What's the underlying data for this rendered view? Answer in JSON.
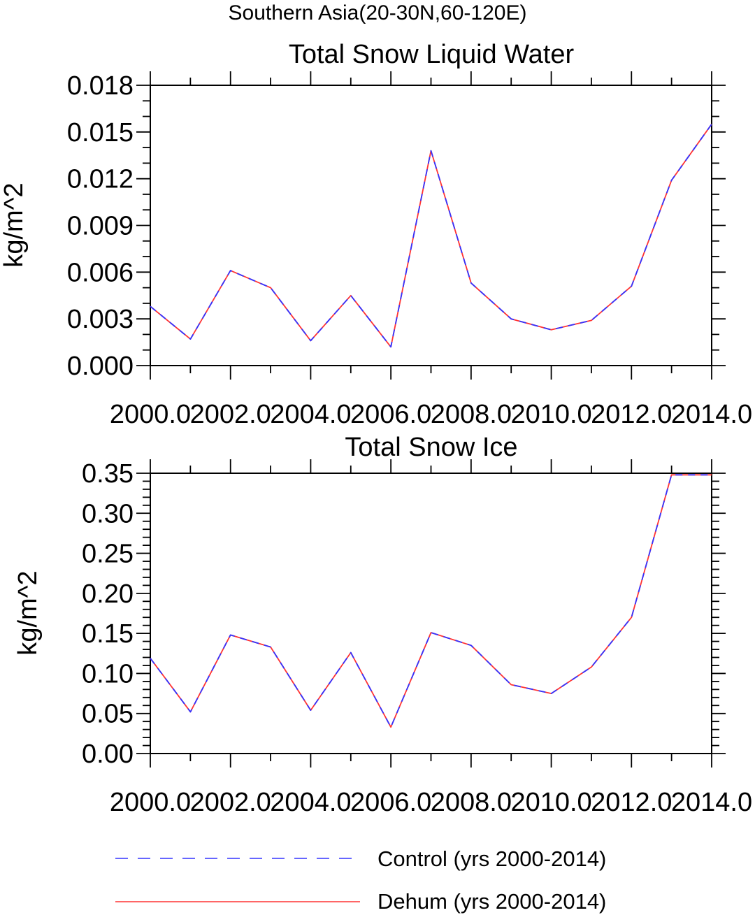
{
  "title": "Southern Asia(20-30N,60-120E)",
  "legend": [
    {
      "label": "Control (yrs 2000-2014)",
      "color": "#3333ff",
      "dash": "dashed"
    },
    {
      "label": "Dehum (yrs 2000-2014)",
      "color": "#ff3333",
      "dash": "solid"
    }
  ],
  "chart_data": [
    {
      "type": "line",
      "title": "Total Snow Liquid Water",
      "xlabel": "",
      "ylabel": "kg/m^2",
      "xlim": [
        2000,
        2014
      ],
      "ylim": [
        0,
        0.018
      ],
      "xticks": [
        2000,
        2002,
        2004,
        2006,
        2008,
        2010,
        2012,
        2014
      ],
      "xtick_labels": [
        "2000.0",
        "2002.0",
        "2004.0",
        "2006.0",
        "2008.0",
        "2010.0",
        "2012.0",
        "2014.0"
      ],
      "yticks": [
        0,
        0.003,
        0.006,
        0.009,
        0.012,
        0.015,
        0.018
      ],
      "ytick_labels": [
        "0.000",
        "0.003",
        "0.006",
        "0.009",
        "0.012",
        "0.015",
        "0.018"
      ],
      "x": [
        2000,
        2001,
        2002,
        2003,
        2004,
        2005,
        2006,
        2007,
        2008,
        2009,
        2010,
        2011,
        2012,
        2013,
        2014
      ],
      "series": [
        {
          "name": "Control (yrs 2000-2014)",
          "values": [
            0.0038,
            0.0017,
            0.0061,
            0.005,
            0.0016,
            0.0045,
            0.0012,
            0.0138,
            0.0053,
            0.003,
            0.0023,
            0.0029,
            0.0051,
            0.0119,
            0.0155
          ]
        },
        {
          "name": "Dehum (yrs 2000-2014)",
          "values": [
            0.0038,
            0.0017,
            0.0061,
            0.005,
            0.0016,
            0.0045,
            0.0012,
            0.0138,
            0.0053,
            0.003,
            0.0023,
            0.0029,
            0.0051,
            0.0119,
            0.0155
          ]
        }
      ],
      "grid": false
    },
    {
      "type": "line",
      "title": "Total Snow Ice",
      "xlabel": "",
      "ylabel": "kg/m^2",
      "xlim": [
        2000,
        2014
      ],
      "ylim": [
        0,
        0.35
      ],
      "xticks": [
        2000,
        2002,
        2004,
        2006,
        2008,
        2010,
        2012,
        2014
      ],
      "xtick_labels": [
        "2000.0",
        "2002.0",
        "2004.0",
        "2006.0",
        "2008.0",
        "2010.0",
        "2012.0",
        "2014.0"
      ],
      "yticks": [
        0,
        0.05,
        0.1,
        0.15,
        0.2,
        0.25,
        0.3,
        0.35
      ],
      "ytick_labels": [
        "0.00",
        "0.05",
        "0.10",
        "0.15",
        "0.20",
        "0.25",
        "0.30",
        "0.35"
      ],
      "x": [
        2000,
        2001,
        2002,
        2003,
        2004,
        2005,
        2006,
        2007,
        2008,
        2009,
        2010,
        2011,
        2012,
        2013,
        2014
      ],
      "series": [
        {
          "name": "Control (yrs 2000-2014)",
          "values": [
            0.119,
            0.052,
            0.148,
            0.133,
            0.054,
            0.126,
            0.033,
            0.151,
            0.135,
            0.086,
            0.075,
            0.108,
            0.17,
            0.348,
            0.348
          ]
        },
        {
          "name": "Dehum (yrs 2000-2014)",
          "values": [
            0.119,
            0.052,
            0.148,
            0.133,
            0.054,
            0.126,
            0.033,
            0.151,
            0.135,
            0.086,
            0.075,
            0.108,
            0.17,
            0.348,
            0.348
          ]
        }
      ],
      "grid": false
    }
  ]
}
